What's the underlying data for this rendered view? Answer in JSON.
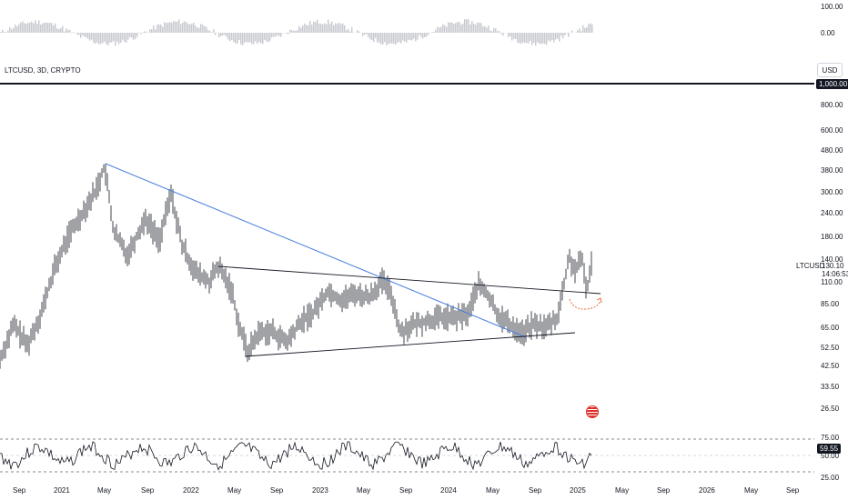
{
  "top_indicator": {
    "levels": [
      "100.00",
      "0.00"
    ]
  },
  "symbol": {
    "label": "LTCUSD, 3D, CRYPTO",
    "currency_button": "USD"
  },
  "price_scale": {
    "labels": [
      "800.00",
      "600.00",
      "480.00",
      "380.00",
      "300.00",
      "240.00",
      "180.00",
      "140.00",
      "110.00",
      "85.00",
      "65.00",
      "52.50",
      "42.50",
      "33.50",
      "26.50"
    ],
    "badge": "1,000.00"
  },
  "last_price": {
    "symbol": "LTCUSD",
    "price": "130.10",
    "countdown": "14:06:53"
  },
  "rsi": {
    "levels": [
      "75.00",
      "50.00",
      "25.00"
    ],
    "current": "59.55"
  },
  "time_axis": {
    "labels": [
      "Sep",
      "2021",
      "May",
      "Sep",
      "2022",
      "May",
      "Sep",
      "2023",
      "May",
      "Sep",
      "2024",
      "May",
      "Sep",
      "2025",
      "May",
      "Sep",
      "2026",
      "May",
      "Sep"
    ]
  },
  "colors": {
    "candles": "#131722",
    "trendline_blue": "#4a7fe0",
    "trendline_black": "#131722",
    "projection_arrow": "#e0602a",
    "rsi_band": "#131722"
  },
  "icons": {
    "event": "us-flag-icon"
  }
}
